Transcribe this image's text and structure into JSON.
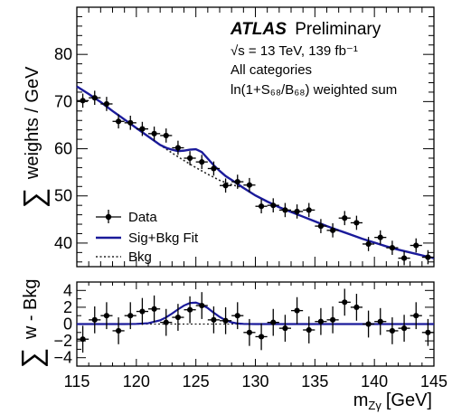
{
  "chart_data": [
    {
      "type": "scatter",
      "panel": "main",
      "ylabel_prefix": "∑",
      "ylabel": "weights / GeV",
      "xlim": [
        115,
        145
      ],
      "ylim": [
        35,
        90
      ],
      "yticks": [
        40,
        50,
        60,
        70,
        80
      ],
      "annotations": {
        "atlas_bold": "ATLAS",
        "atlas_rest": "Preliminary",
        "energy": "√s = 13 TeV, 139 fb⁻¹",
        "categories": "All categories",
        "weighting": "ln(1+S₆₈/B₆₈) weighted sum"
      },
      "legend": {
        "placement": "bottom-left",
        "entries": [
          "Data",
          "Sig+Bkg Fit",
          "Bkg"
        ]
      },
      "data": {
        "x": [
          115.5,
          116.5,
          117.5,
          118.5,
          119.5,
          120.5,
          121.5,
          122.5,
          123.5,
          124.5,
          125.5,
          126.5,
          127.5,
          128.5,
          129.5,
          130.5,
          131.5,
          132.5,
          133.5,
          134.5,
          135.5,
          136.5,
          137.5,
          138.5,
          139.5,
          140.5,
          141.5,
          142.5,
          143.5,
          144.5
        ],
        "y": [
          70.2,
          70.8,
          69.5,
          65.8,
          65.5,
          64.2,
          63.2,
          62.8,
          60.2,
          58.0,
          57.2,
          55.8,
          52.2,
          53.0,
          52.3,
          47.8,
          48.0,
          47.0,
          46.7,
          47.0,
          43.6,
          42.7,
          45.3,
          44.3,
          39.8,
          41.2,
          39.0,
          36.8,
          39.5,
          37.0
        ],
        "yerr": 1.5
      },
      "sig_bkg_fit": {
        "x": [
          115,
          116,
          117,
          118,
          119,
          120,
          121,
          122,
          122.5,
          123,
          123.5,
          124,
          124.5,
          125,
          125.5,
          126,
          126.5,
          127,
          127.5,
          128,
          129,
          130,
          131,
          132,
          133,
          134,
          135,
          136,
          137,
          138,
          139,
          140,
          141,
          142,
          143,
          144,
          145
        ],
        "y": [
          73.2,
          71.6,
          69.9,
          68.0,
          66.2,
          64.4,
          62.6,
          60.8,
          60.2,
          59.8,
          59.5,
          59.6,
          59.8,
          59.9,
          59.3,
          57.9,
          56.5,
          55.3,
          54.2,
          53.4,
          51.7,
          50.1,
          48.8,
          47.6,
          46.6,
          45.6,
          44.6,
          43.6,
          42.7,
          41.8,
          40.9,
          40.1,
          39.3,
          38.6,
          38.0,
          37.4,
          36.8
        ]
      },
      "bkg_fit": {
        "x": [
          120,
          121,
          122,
          123,
          124,
          125,
          126,
          127,
          128,
          129
        ],
        "y": [
          64.4,
          62.6,
          60.8,
          59.1,
          57.5,
          56.0,
          54.6,
          53.3,
          52.4,
          51.7
        ]
      }
    },
    {
      "type": "scatter",
      "panel": "residual",
      "ylabel_prefix": "∑",
      "ylabel": "w - Bkg",
      "xlabel": "m",
      "xlabel_sub": "Zγ",
      "xlabel_unit": "[GeV]",
      "xlim": [
        115,
        145
      ],
      "ylim": [
        -5,
        5
      ],
      "yticks": [
        -4,
        -2,
        0,
        2,
        4
      ],
      "xticks": [
        115,
        120,
        125,
        130,
        135,
        140,
        145
      ],
      "data": {
        "x": [
          115.5,
          116.5,
          117.5,
          118.5,
          119.5,
          120.5,
          121.5,
          122.5,
          123.5,
          124.5,
          125.5,
          126.5,
          127.5,
          128.5,
          129.5,
          130.5,
          131.5,
          132.5,
          133.5,
          134.5,
          135.5,
          136.5,
          137.5,
          138.5,
          139.5,
          140.5,
          141.5,
          142.5,
          143.5,
          144.5
        ],
        "y": [
          -1.8,
          0.5,
          1.0,
          -0.8,
          1.0,
          1.5,
          1.8,
          0.2,
          0.8,
          1.7,
          2.2,
          0.5,
          0.4,
          1.0,
          -1.0,
          -1.5,
          0.2,
          -0.5,
          1.6,
          -0.7,
          0.3,
          0.5,
          2.6,
          2.0,
          0.0,
          0.3,
          -0.8,
          -0.5,
          1.0,
          -1.0
        ],
        "yerr": 1.6
      },
      "signal_fit": {
        "x": [
          115,
          119,
          120,
          121,
          122,
          122.5,
          123,
          123.5,
          124,
          124.5,
          125,
          125.5,
          126,
          126.5,
          127,
          127.5,
          128,
          128.5,
          129,
          130,
          135,
          140,
          145
        ],
        "y": [
          0,
          0,
          0.02,
          0.1,
          0.45,
          0.8,
          1.25,
          1.75,
          2.2,
          2.5,
          2.55,
          2.3,
          1.9,
          1.35,
          0.85,
          0.45,
          0.2,
          0.07,
          0.02,
          0,
          0,
          0,
          0
        ]
      }
    }
  ]
}
